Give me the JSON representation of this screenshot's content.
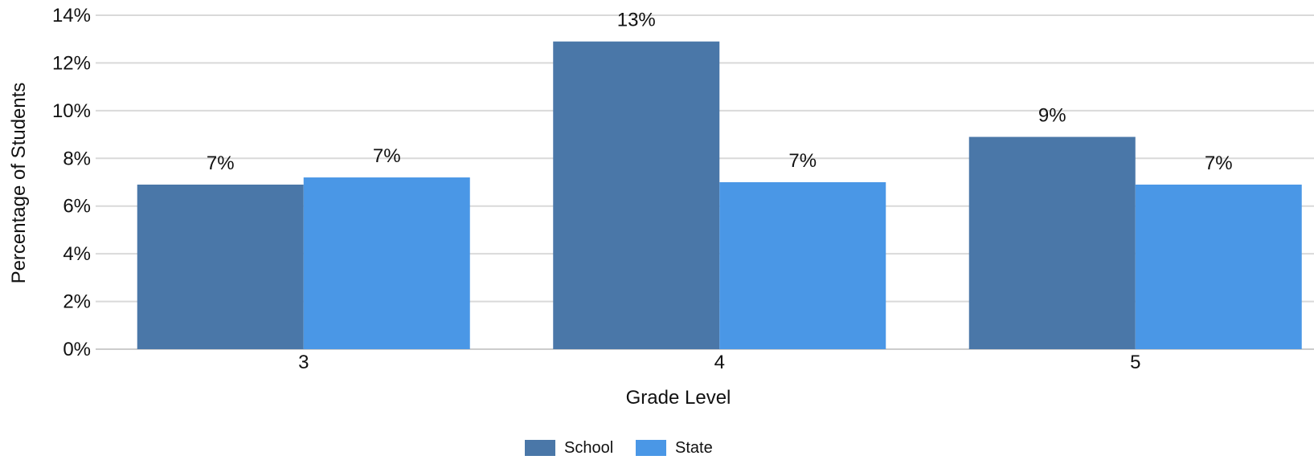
{
  "chart_data": {
    "type": "bar",
    "title": "",
    "xlabel": "Grade Level",
    "ylabel": "Percentage of Students",
    "categories": [
      "3",
      "4",
      "5"
    ],
    "series": [
      {
        "name": "School",
        "color": "#4a77a8",
        "values": [
          6.9,
          12.9,
          8.9
        ],
        "data_labels": [
          "7%",
          "13%",
          "9%"
        ]
      },
      {
        "name": "State",
        "color": "#4a97e6",
        "values": [
          7.2,
          7.0,
          6.9
        ],
        "data_labels": [
          "7%",
          "7%",
          "7%"
        ]
      }
    ],
    "ylim": [
      0,
      14
    ],
    "yticks": [
      0,
      2,
      4,
      6,
      8,
      10,
      12,
      14
    ],
    "ytick_labels": [
      "0%",
      "2%",
      "4%",
      "6%",
      "8%",
      "10%",
      "12%",
      "14%"
    ],
    "grid": true,
    "gridline_color": "#d9d9d9",
    "legend_position": "bottom-center"
  }
}
